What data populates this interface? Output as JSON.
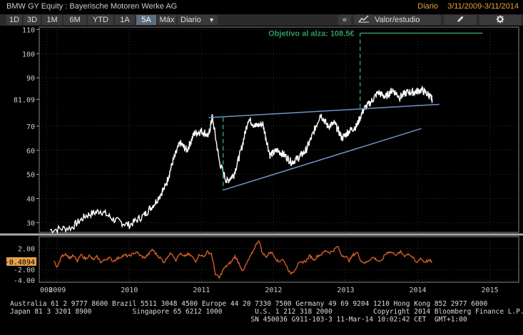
{
  "window": {
    "title": "BMW GY Equity : Bayerische Motoren Werke AG",
    "frequency": "Diario",
    "date_range": "3/11/2009-3/11/2014"
  },
  "toolbar": {
    "ranges": [
      "1D",
      "3D",
      "1M",
      "6M",
      "YTD",
      "1A",
      "5A",
      "Máx"
    ],
    "active_range": "5A",
    "period_select": "Diario",
    "collapse_label": "«",
    "study_label": "Valor/estudio",
    "pencil_icon": "pencil-icon",
    "gear_icon": "gear-icon",
    "chart_icon": "chart-line-icon"
  },
  "chart_data": [
    {
      "type": "line",
      "series": [
        {
          "x": [
            "2008.9",
            "2009.2",
            "2009.4",
            "2009.6",
            "2009.8",
            "2010.0",
            "2010.2",
            "2010.35",
            "2010.5",
            "2010.6",
            "2010.7",
            "2010.8",
            "2010.9",
            "2011.0",
            "2011.1",
            "2011.15",
            "2011.25",
            "2011.35",
            "2011.45",
            "2011.55",
            "2011.65",
            "2011.75",
            "2011.85",
            "2011.95",
            "2012.05",
            "2012.15",
            "2012.25",
            "2012.35",
            "2012.45",
            "2012.55",
            "2012.65",
            "2012.75",
            "2012.85",
            "2012.95",
            "2013.05",
            "2013.15",
            "2013.25",
            "2013.35",
            "2013.45",
            "2013.55",
            "2013.65",
            "2013.75",
            "2013.85",
            "2013.95",
            "2014.05",
            "2014.15",
            "2014.2"
          ],
          "values": [
            27,
            28,
            33,
            35,
            31,
            29,
            33,
            38,
            45,
            55,
            63,
            60,
            67,
            68,
            66,
            74,
            55,
            47,
            50,
            60,
            73,
            70,
            71,
            58,
            60,
            58,
            55,
            57,
            60,
            67,
            75,
            70,
            71,
            65,
            68,
            70,
            77,
            80,
            84,
            82,
            85,
            82,
            84,
            84,
            85,
            83,
            81
          ]
        }
      ],
      "y_ticks": [
        "110",
        "100",
        "90",
        "81.09",
        "70",
        "60",
        "50",
        "40",
        "30"
      ],
      "ylim": [
        26,
        111
      ],
      "last_price_label": "81.09",
      "annotation": "Objetivo al alza: 108.5€",
      "x_ticks": [
        "008",
        "2009",
        "2010",
        "2011",
        "2012",
        "2013",
        "2014",
        "2015"
      ]
    },
    {
      "type": "line",
      "series": [
        {
          "values": [
            -0.5,
            -1.5,
            0.5,
            1.0,
            0.2,
            0.6,
            -0.4,
            0.8,
            0.0,
            0.6,
            -0.2,
            0.4,
            -0.6,
            -0.2,
            0.3,
            -0.4,
            0.0,
            0.4,
            0.7,
            0.5,
            0.9,
            1.3,
            0.6,
            0.2,
            0.8,
            1.8,
            0.9,
            0.2,
            -0.6,
            0.6,
            1.1,
            -0.2,
            1.0,
            0.4,
            0.9,
            0.5,
            -0.4,
            0.9,
            0.4,
            1.3,
            1.0,
            -2.8,
            -3.6,
            -2.0,
            -1.2,
            -0.6,
            0.5,
            -0.8,
            -2.4,
            -0.8,
            0.6,
            2.2,
            3.6,
            1.0,
            0.4,
            1.4,
            0.5,
            -0.6,
            0.0,
            -1.2,
            -2.8,
            -2.2,
            -1.0,
            -0.6,
            -0.4,
            0.6,
            -0.2,
            0.6,
            0.9,
            1.6,
            1.2,
            1.6,
            2.4,
            0.7,
            0.5,
            -0.3,
            0.8,
            1.2,
            -0.4,
            -0.8,
            -0.2,
            0.3,
            -0.2,
            -0.6,
            0.8,
            1.4,
            1.1,
            0.8,
            1.3,
            0.6,
            1.0,
            0.3,
            -0.8,
            0.2,
            -0.6,
            -0.3,
            -0.49
          ]
        }
      ],
      "y_ticks": [
        "2.00",
        "-0.4894",
        "-2.00",
        "-4.00"
      ],
      "ylim": [
        -4.4,
        4.2
      ],
      "last_value_label": "-0.4894"
    }
  ],
  "footer": {
    "line1": "Australia 61 2 9777 8600 Brazil 5511 3048 4500 Europe 44 20 7330 7500 Germany 49 69 9204 1210 Hong Kong 852 2977 6000",
    "line2": "Japan 81 3 3201 8900          Singapore 65 6212 1000        U.S. 1 212 318 2000          Copyright 2014 Bloomberg Finance L.P.",
    "line3": "                                                           SN 450036 G911-103-3 11-Mar-14 10:02:42 CET  GMT+1:00"
  },
  "colors": {
    "price_line": "#ffffff",
    "trend_line": "#6f93c9",
    "target_line": "#2e9a62",
    "oscillator": "#e0622a",
    "axis_text": "#cccccc",
    "active_tab": "#5b6e7e"
  }
}
